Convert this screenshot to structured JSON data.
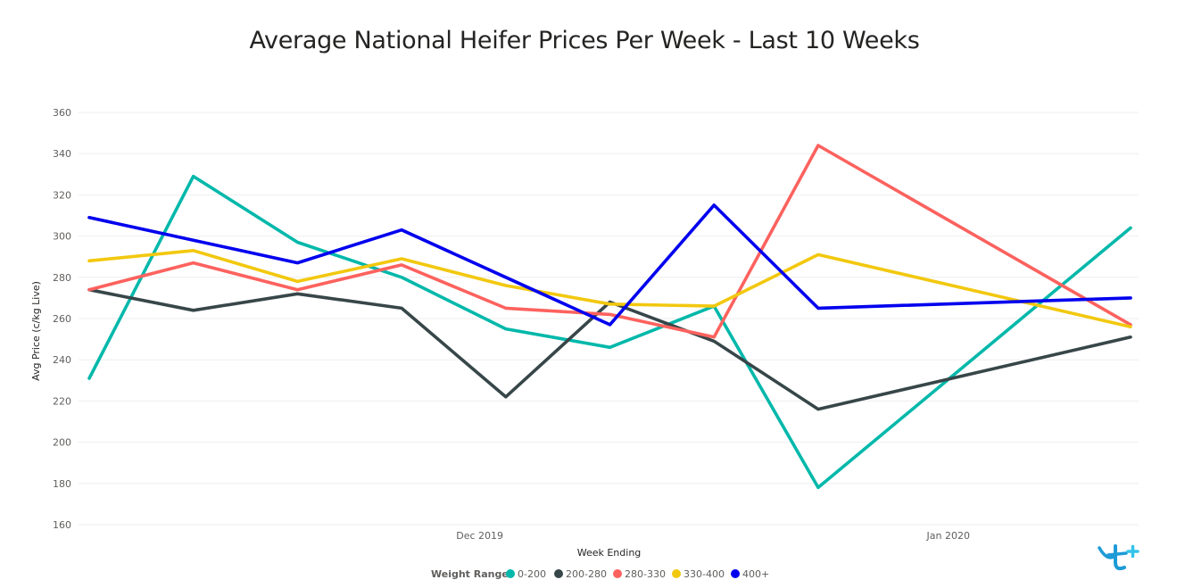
{
  "chart_data": {
    "type": "line",
    "title": "Average National Heifer Prices Per Week - Last 10 Weeks",
    "xlabel": "Week Ending",
    "ylabel": "Avg Price (c/kg Live)",
    "ylim": [
      160,
      360
    ],
    "yticks": [
      160,
      180,
      200,
      220,
      240,
      260,
      280,
      300,
      320,
      340,
      360
    ],
    "grid": true,
    "x_tick_labels": [
      "Dec 2019",
      "Jan 2020"
    ],
    "x_tick_label_positions": [
      3.75,
      8.25
    ],
    "x": [
      0,
      1,
      2,
      3,
      4,
      5,
      6,
      7,
      8,
      9,
      10
    ],
    "legend": {
      "title": "Weight Range",
      "placement": "bottom-center"
    },
    "series": [
      {
        "name": "0-200",
        "color": "#01B8AA",
        "values": [
          231,
          329,
          297,
          280,
          255,
          246,
          266,
          178,
          null,
          null,
          304
        ]
      },
      {
        "name": "200-280",
        "color": "#374649",
        "values": [
          274,
          264,
          272,
          265,
          222,
          268,
          249,
          216,
          null,
          null,
          251
        ]
      },
      {
        "name": "280-330",
        "color": "#FD625E",
        "values": [
          274,
          287,
          274,
          286,
          265,
          262,
          251,
          344,
          null,
          null,
          257
        ]
      },
      {
        "name": "330-400",
        "color": "#F2C80F",
        "values": [
          288,
          293,
          278,
          289,
          276,
          267,
          266,
          291,
          null,
          null,
          256
        ]
      },
      {
        "name": "400+",
        "color": "#0000EE",
        "values": [
          309,
          298,
          287,
          303,
          280,
          257,
          315,
          265,
          null,
          null,
          270
        ]
      }
    ]
  },
  "logo": {
    "name": "brand-logo"
  }
}
